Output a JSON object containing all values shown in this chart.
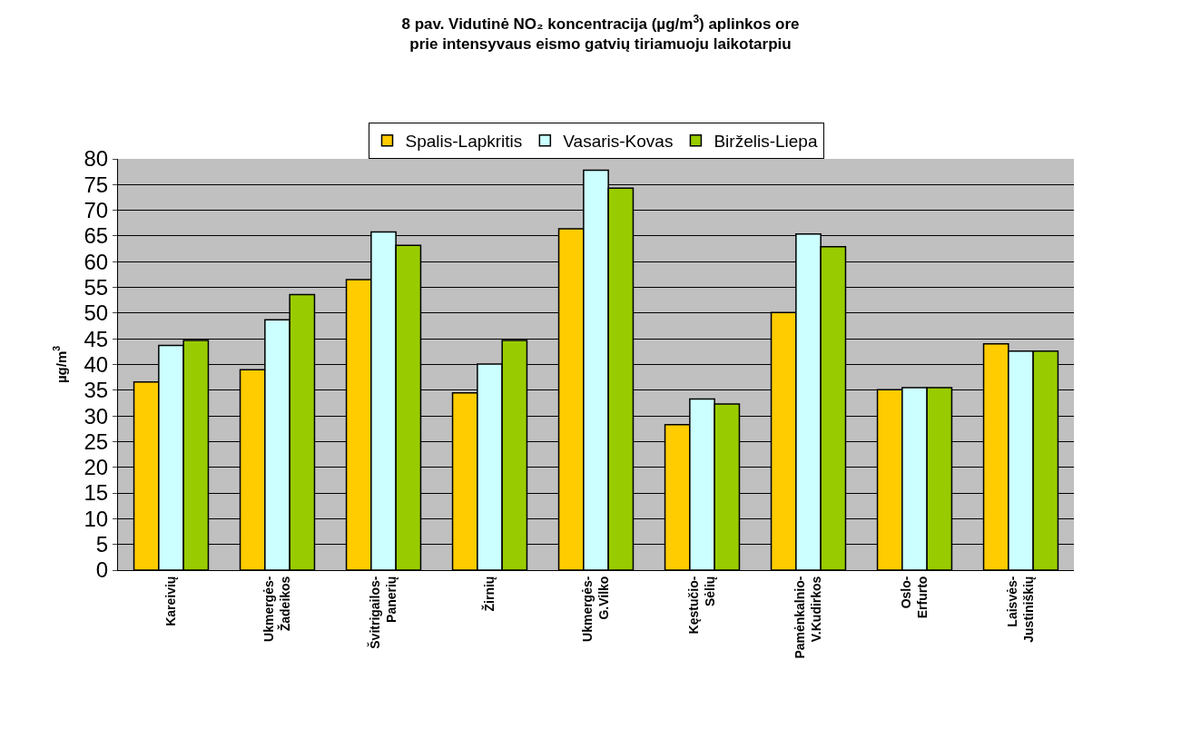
{
  "chart_data": {
    "type": "bar",
    "title": "8 pav. Vidutinė NO₂ koncentracija (µg/m$^{3}$) aplinkos ore prie intensyvaus eismo gatvių tiriamuoju laikotarpiu",
    "ylabel": "µg/m$^{3}$",
    "categories": [
      "Kareivių",
      "Ukmergės-Žadeikos",
      "Švitrigailos-Panerių",
      "Žirnių",
      "Ukmergės-G.Vilko",
      "Kęstučio-Sėlių",
      "Pamėnkalnio-V.Kudirkos",
      "Oslo-Erfurto",
      "Laisvės-Justiniškių"
    ],
    "series": [
      {
        "name": "Spalis-Lapkritis",
        "color": "#ffcc00",
        "values": [
          36.6,
          39.0,
          56.5,
          34.5,
          66.4,
          28.3,
          50.1,
          35.1,
          44.0
        ]
      },
      {
        "name": "Vasaris-Kovas",
        "color": "#ccffff",
        "values": [
          43.7,
          48.7,
          65.8,
          40.1,
          77.8,
          33.3,
          65.4,
          35.5,
          42.6
        ]
      },
      {
        "name": "Birželis-Liepa",
        "color": "#99cc00",
        "values": [
          44.7,
          53.6,
          63.2,
          44.7,
          74.3,
          32.3,
          62.9,
          35.5,
          42.6
        ]
      }
    ],
    "ylim": [
      0,
      80
    ],
    "yticks": [
      0,
      5,
      10,
      15,
      20,
      25,
      30,
      35,
      40,
      45,
      50,
      55,
      60,
      65,
      70,
      75,
      80
    ],
    "grid": "y",
    "legend": "top"
  }
}
